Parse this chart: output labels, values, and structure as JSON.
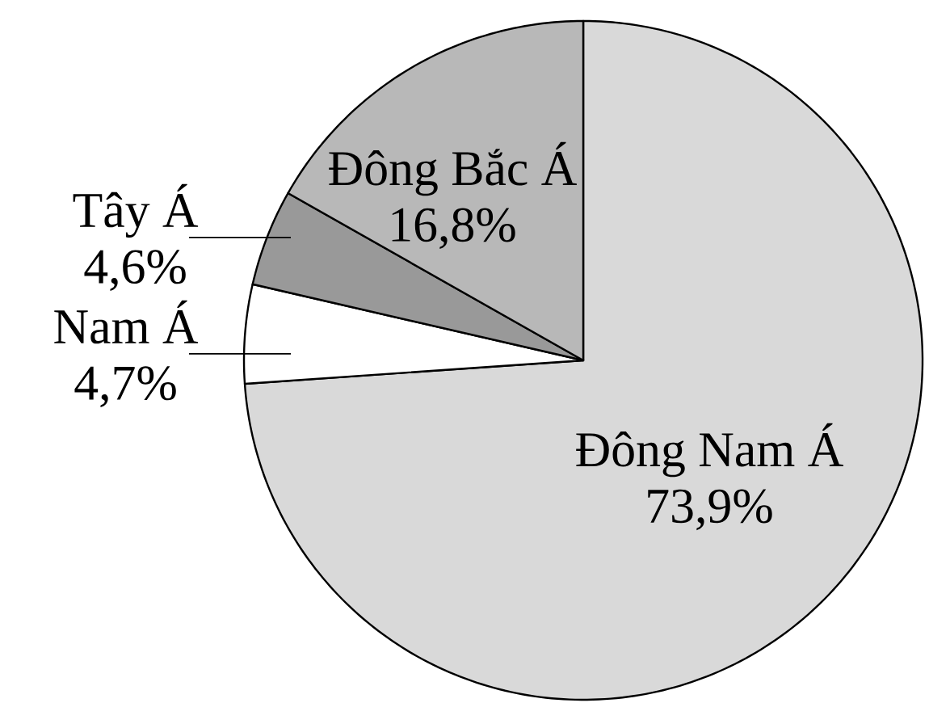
{
  "chart_data": {
    "type": "pie",
    "categories": [
      "Đông Nam Á",
      "Nam Á",
      "Tây Á",
      "Đông Bắc Á"
    ],
    "values": [
      73.9,
      4.7,
      4.6,
      16.8
    ],
    "colors": [
      "#d9d9d9",
      "#ffffff",
      "#999999",
      "#b8b8b8"
    ],
    "value_labels": [
      "73,9%",
      "4,7%",
      "4,6%",
      "16,8%"
    ]
  }
}
